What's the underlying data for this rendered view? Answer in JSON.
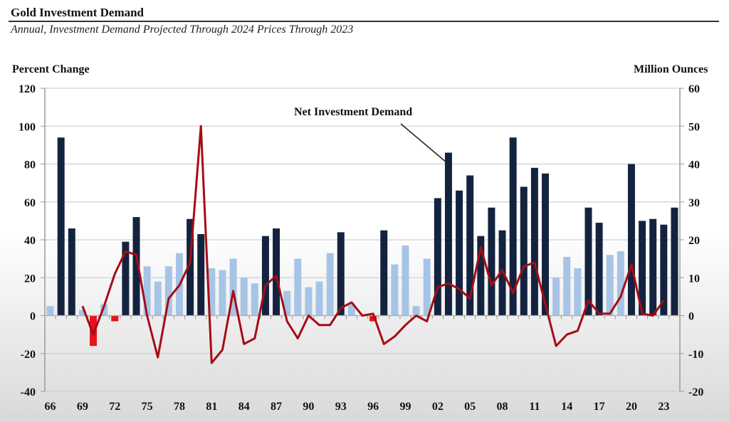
{
  "header": {
    "title": "Gold Investment Demand",
    "subtitle": "Annual, Investment Demand Projected Through 2024 Prices Through 2023"
  },
  "chart_data": {
    "type": "bar+line",
    "title": "Gold Investment Demand",
    "subtitle": "Annual, Investment Demand Projected Through 2024 Prices Through 2023",
    "left_axis": {
      "label": "Percent Change",
      "range": [
        -40,
        120
      ],
      "ticks": [
        -40,
        -20,
        0,
        20,
        40,
        60,
        80,
        100,
        120
      ]
    },
    "right_axis": {
      "label": "Million Ounces",
      "range": [
        -20,
        60
      ],
      "ticks": [
        -20,
        -10,
        0,
        10,
        20,
        30,
        40,
        50,
        60
      ]
    },
    "x_tick_labels": [
      "66",
      "69",
      "72",
      "75",
      "78",
      "81",
      "84",
      "87",
      "90",
      "93",
      "96",
      "99",
      "02",
      "05",
      "08",
      "11",
      "14",
      "17",
      "20",
      "23"
    ],
    "years": [
      1966,
      1967,
      1968,
      1969,
      1970,
      1971,
      1972,
      1973,
      1974,
      1975,
      1976,
      1977,
      1978,
      1979,
      1980,
      1981,
      1982,
      1983,
      1984,
      1985,
      1986,
      1987,
      1988,
      1989,
      1990,
      1991,
      1992,
      1993,
      1994,
      1995,
      1996,
      1997,
      1998,
      1999,
      2000,
      2001,
      2002,
      2003,
      2004,
      2005,
      2006,
      2007,
      2008,
      2009,
      2010,
      2011,
      2012,
      2013,
      2014,
      2015,
      2016,
      2017,
      2018,
      2019,
      2020,
      2021,
      2022,
      2023,
      2024
    ],
    "grid": true,
    "annotation": "Net Investment Demand",
    "series": [
      {
        "name": "Net Investment Demand (Million Ounces)",
        "axis": "right",
        "type": "bar",
        "values": [
          2.5,
          47,
          23,
          1.5,
          -8,
          3,
          -1.5,
          19.5,
          26,
          13,
          9,
          13,
          16.5,
          25.5,
          21.5,
          12.5,
          12,
          15,
          10,
          8.5,
          21,
          23,
          6.5,
          15,
          7.5,
          9,
          16.5,
          22,
          3,
          0,
          -1.5,
          22.5,
          13.5,
          18.5,
          2.5,
          15,
          31,
          43,
          33,
          37,
          21,
          28.5,
          22.5,
          47,
          34,
          39,
          37.5,
          10,
          15.5,
          12.5,
          28.5,
          24.5,
          16,
          17,
          40,
          25,
          25.5,
          24,
          28.5
        ],
        "colors": {
          "large": "#13233f",
          "small": "#a6c4e6",
          "negative": "#e8121b"
        }
      },
      {
        "name": "Gold Price Percent Change",
        "axis": "left",
        "type": "line",
        "color": "#a50d14",
        "values": [
          null,
          null,
          null,
          5,
          -10,
          5,
          22,
          34,
          32,
          0,
          -22,
          9,
          16,
          28,
          100,
          -25,
          -18,
          13,
          -15,
          -12,
          16,
          21,
          -3,
          -12,
          0,
          -5,
          -5,
          4,
          7,
          0,
          1,
          -15,
          -11,
          -5,
          0,
          -3,
          15,
          17,
          14,
          9,
          36,
          16,
          24,
          12,
          26,
          28,
          6,
          -16,
          -10,
          -8,
          8,
          1,
          1,
          10,
          27,
          1,
          0,
          8,
          null
        ]
      }
    ]
  }
}
